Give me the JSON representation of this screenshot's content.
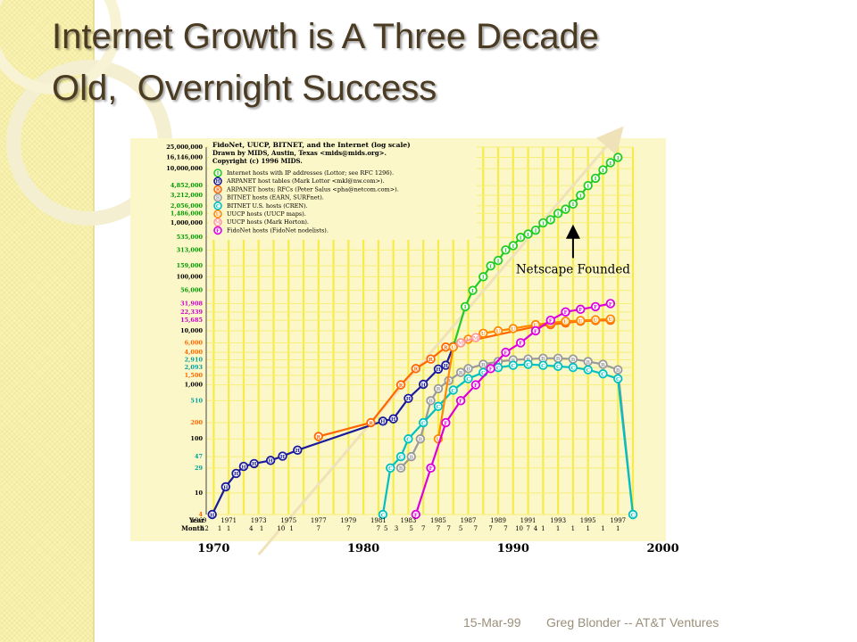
{
  "slide": {
    "title_lines": [
      "Internet Growth is A Three Decade",
      "Old,  Overnight Success"
    ],
    "footer_date": "15-Mar-99",
    "footer_credit": "Greg Blonder -- AT&T Ventures"
  },
  "colors": {
    "accent": "#4a3b22",
    "strip": "#faf3b0",
    "chart_bg": "#fbf7c8",
    "grid_yellow": "#f5ec4a"
  },
  "chart_data": {
    "type": "line",
    "title": "FidoNet, UUCP, BITNET, and the Internet (log scale)",
    "subtitle_lines": [
      "Drawn by MIDS, Austin, Texas <mids@mids.org>.",
      "Copyright (c) 1996 MIDS."
    ],
    "y_scale": "log",
    "ylim": [
      4,
      25000000
    ],
    "xlim": [
      1969.5,
      1998
    ],
    "ytick_labels": [
      {
        "v": 25000000,
        "t": "25,000,000",
        "c": "#000000"
      },
      {
        "v": 16146000,
        "t": "16,146,000",
        "c": "#000000"
      },
      {
        "v": 10000000,
        "t": "10,000,000",
        "c": "#000000"
      },
      {
        "v": 4852000,
        "t": "4,852,000",
        "c": "#009a00"
      },
      {
        "v": 3212000,
        "t": "3,212,000",
        "c": "#009a00"
      },
      {
        "v": 2056000,
        "t": "2,056,000",
        "c": "#009a00"
      },
      {
        "v": 1486000,
        "t": "1,486,000",
        "c": "#009a00"
      },
      {
        "v": 1000000,
        "t": "1,000,000",
        "c": "#000000"
      },
      {
        "v": 535000,
        "t": "535,000",
        "c": "#009a00"
      },
      {
        "v": 313000,
        "t": "313,000",
        "c": "#009a00"
      },
      {
        "v": 159000,
        "t": "159,000",
        "c": "#009a00"
      },
      {
        "v": 100000,
        "t": "100,000",
        "c": "#000000"
      },
      {
        "v": 56000,
        "t": "56,000",
        "c": "#009a00"
      },
      {
        "v": 31908,
        "t": "31,908",
        "c": "#cc00cc"
      },
      {
        "v": 22339,
        "t": "22,339",
        "c": "#cc00cc"
      },
      {
        "v": 15685,
        "t": "15,685",
        "c": "#cc00cc"
      },
      {
        "v": 10000,
        "t": "10,000",
        "c": "#000000"
      },
      {
        "v": 6000,
        "t": "6,000",
        "c": "#ff6600"
      },
      {
        "v": 4000,
        "t": "4,000",
        "c": "#ff6600"
      },
      {
        "v": 2910,
        "t": "2,910",
        "c": "#00a0a0"
      },
      {
        "v": 2093,
        "t": "2,093",
        "c": "#00a0a0"
      },
      {
        "v": 1500,
        "t": "1,500",
        "c": "#ff6600"
      },
      {
        "v": 1000,
        "t": "1,000",
        "c": "#000000"
      },
      {
        "v": 510,
        "t": "510",
        "c": "#00a0a0"
      },
      {
        "v": 200,
        "t": "200",
        "c": "#ff6600"
      },
      {
        "v": 100,
        "t": "100",
        "c": "#000000"
      },
      {
        "v": 47,
        "t": "47",
        "c": "#00a0a0"
      },
      {
        "v": 29,
        "t": "29",
        "c": "#00a0a0"
      },
      {
        "v": 10,
        "t": "10",
        "c": "#000000"
      },
      {
        "v": 4,
        "t": "4",
        "c": "#ff6600"
      }
    ],
    "year_row_label": "Year",
    "month_row_label": "Month",
    "year_tick_labels": [
      {
        "v": 1969,
        "t": "1969"
      },
      {
        "v": 1971,
        "t": "1971"
      },
      {
        "v": 1973,
        "t": "1973"
      },
      {
        "v": 1975,
        "t": "1975"
      },
      {
        "v": 1977,
        "t": "1977"
      },
      {
        "v": 1979,
        "t": "1979"
      },
      {
        "v": 1981,
        "t": "1981"
      },
      {
        "v": 1983,
        "t": "1983"
      },
      {
        "v": 1985,
        "t": "1985"
      },
      {
        "v": 1987,
        "t": "1987"
      },
      {
        "v": 1989,
        "t": "1989"
      },
      {
        "v": 1991,
        "t": "1991"
      },
      {
        "v": 1993,
        "t": "1993"
      },
      {
        "v": 1995,
        "t": "1995"
      },
      {
        "v": 1997,
        "t": "1997"
      }
    ],
    "month_tick_labels": [
      {
        "v": 1969.4,
        "t": "12"
      },
      {
        "v": 1970.4,
        "t": "1"
      },
      {
        "v": 1971.0,
        "t": "1"
      },
      {
        "v": 1972.5,
        "t": "4"
      },
      {
        "v": 1973.2,
        "t": "1"
      },
      {
        "v": 1974.5,
        "t": "10"
      },
      {
        "v": 1975.2,
        "t": "1"
      },
      {
        "v": 1977.0,
        "t": "7"
      },
      {
        "v": 1979.0,
        "t": "7"
      },
      {
        "v": 1981.0,
        "t": "7"
      },
      {
        "v": 1981.5,
        "t": "5"
      },
      {
        "v": 1982.2,
        "t": "3"
      },
      {
        "v": 1983.2,
        "t": "5"
      },
      {
        "v": 1984.0,
        "t": "7"
      },
      {
        "v": 1985.0,
        "t": "7"
      },
      {
        "v": 1985.7,
        "t": "7"
      },
      {
        "v": 1986.5,
        "t": "5"
      },
      {
        "v": 1987.5,
        "t": "7"
      },
      {
        "v": 1988.5,
        "t": "7"
      },
      {
        "v": 1989.5,
        "t": "7"
      },
      {
        "v": 1990.4,
        "t": "10"
      },
      {
        "v": 1991.0,
        "t": "7"
      },
      {
        "v": 1991.5,
        "t": "4"
      },
      {
        "v": 1992.0,
        "t": "1"
      },
      {
        "v": 1993.0,
        "t": "1"
      },
      {
        "v": 1994.0,
        "t": "1"
      },
      {
        "v": 1995.0,
        "t": "1"
      },
      {
        "v": 1996.0,
        "t": "1"
      },
      {
        "v": 1997.0,
        "t": "1"
      }
    ],
    "decade_labels": [
      {
        "v": 1970,
        "t": "1970"
      },
      {
        "v": 1980,
        "t": "1980"
      },
      {
        "v": 1990,
        "t": "1990"
      },
      {
        "v": 2000,
        "t": "2000"
      }
    ],
    "annotation": {
      "text": "Netscape Founded",
      "x": 1994.0,
      "y": 1000000,
      "y_text": 100000
    },
    "trend_arrow": {
      "start": {
        "x": 1973.0,
        "y": 4
      },
      "end": {
        "x": 1996.8,
        "y": 25000000
      }
    },
    "series": [
      {
        "key": "I",
        "color": "#22cc22",
        "name": "Internet hosts with IP addresses (Lottor; see RFC 1296).",
        "points": [
          [
            1986.0,
            5000
          ],
          [
            1986.8,
            28000
          ],
          [
            1987.3,
            56000
          ],
          [
            1988.0,
            100000
          ],
          [
            1988.5,
            159000
          ],
          [
            1989.0,
            200000
          ],
          [
            1989.5,
            313000
          ],
          [
            1990.0,
            376000
          ],
          [
            1990.5,
            535000
          ],
          [
            1991.0,
            617000
          ],
          [
            1991.5,
            727000
          ],
          [
            1992.0,
            992000
          ],
          [
            1992.5,
            1136000
          ],
          [
            1993.0,
            1486000
          ],
          [
            1993.5,
            1776000
          ],
          [
            1994.0,
            2217000
          ],
          [
            1994.5,
            3212000
          ],
          [
            1995.0,
            4852000
          ],
          [
            1995.5,
            6642000
          ],
          [
            1996.0,
            9472000
          ],
          [
            1996.5,
            12881000
          ],
          [
            1997.0,
            16146000
          ]
        ]
      },
      {
        "key": "H",
        "color": "#1a1a9a",
        "name": "ARPANET host tables (Mark Lottor <mkl@nw.com>).",
        "points": [
          [
            1969.9,
            4
          ],
          [
            1970.8,
            13
          ],
          [
            1971.5,
            23
          ],
          [
            1972.0,
            31
          ],
          [
            1972.7,
            35
          ],
          [
            1973.8,
            40
          ],
          [
            1974.6,
            48
          ],
          [
            1975.6,
            62
          ],
          [
            1981.3,
            213
          ],
          [
            1982.0,
            235
          ],
          [
            1983.0,
            562
          ],
          [
            1984.0,
            1024
          ],
          [
            1985.0,
            1961
          ],
          [
            1985.5,
            2308
          ],
          [
            1986.0,
            5089
          ]
        ]
      },
      {
        "key": "R",
        "color": "#ff6600",
        "name": "ARPANET hosts; RFCs (Peter Salus <pha@netcom.com>).",
        "points": [
          [
            1977.0,
            111
          ],
          [
            1980.5,
            200
          ],
          [
            1982.5,
            1000
          ],
          [
            1983.5,
            2000
          ],
          [
            1984.5,
            3000
          ],
          [
            1985.5,
            5000
          ],
          [
            1986.5,
            6000
          ],
          [
            1991.5,
            12000
          ],
          [
            1992.5,
            13000
          ],
          [
            1993.5,
            14000
          ],
          [
            1994.5,
            15000
          ],
          [
            1995.5,
            15500
          ],
          [
            1996.5,
            15685
          ]
        ]
      },
      {
        "key": "B",
        "color": "#999999",
        "name": "BITNET hosts (EARN, SURFnet).",
        "points": [
          [
            1982.5,
            29
          ],
          [
            1983.2,
            47
          ],
          [
            1983.8,
            100
          ],
          [
            1984.5,
            510
          ],
          [
            1985.0,
            850
          ],
          [
            1985.7,
            1200
          ],
          [
            1986.5,
            1700
          ],
          [
            1987.0,
            2000
          ],
          [
            1988.0,
            2400
          ],
          [
            1989.0,
            2700
          ],
          [
            1990.0,
            2900
          ],
          [
            1991.0,
            3000
          ],
          [
            1992.0,
            3100
          ],
          [
            1993.0,
            3100
          ],
          [
            1994.0,
            3000
          ],
          [
            1995.0,
            2700
          ],
          [
            1996.0,
            2400
          ],
          [
            1997.0,
            1900
          ],
          [
            1998.0,
            4
          ]
        ]
      },
      {
        "key": "C",
        "color": "#00c0c0",
        "name": "BITNET U.S. hosts (CREN).",
        "points": [
          [
            1981.3,
            4
          ],
          [
            1981.8,
            29
          ],
          [
            1982.5,
            47
          ],
          [
            1983.0,
            100
          ],
          [
            1984.0,
            200
          ],
          [
            1985.0,
            400
          ],
          [
            1986.0,
            800
          ],
          [
            1987.0,
            1300
          ],
          [
            1988.0,
            1700
          ],
          [
            1989.0,
            2093
          ],
          [
            1990.0,
            2300
          ],
          [
            1991.0,
            2400
          ],
          [
            1992.0,
            2300
          ],
          [
            1993.0,
            2200
          ],
          [
            1994.0,
            2100
          ],
          [
            1995.0,
            1900
          ],
          [
            1996.0,
            1600
          ],
          [
            1997.0,
            1300
          ],
          [
            1998.0,
            4
          ]
        ]
      },
      {
        "key": "U",
        "color": "#ff8800",
        "name": "UUCP hosts (UUCP maps).",
        "points": [
          [
            1985.0,
            100
          ],
          [
            1986.0,
            5000
          ],
          [
            1987.0,
            7000
          ],
          [
            1988.0,
            9000
          ],
          [
            1989.0,
            10000
          ],
          [
            1990.0,
            11000
          ],
          [
            1991.5,
            13000
          ],
          [
            1992.5,
            14000
          ],
          [
            1993.5,
            15000
          ],
          [
            1994.5,
            15500
          ],
          [
            1995.5,
            16000
          ],
          [
            1996.5,
            16500
          ]
        ]
      },
      {
        "key": "M",
        "color": "#ff9999",
        "name": "UUCP hosts (Mark Horton).",
        "points": [
          [
            1986.5,
            6000
          ],
          [
            1987.5,
            7500
          ]
        ]
      },
      {
        "key": "F",
        "color": "#dd00dd",
        "name": "FidoNet hosts (FidoNet nodelists).",
        "points": [
          [
            1983.5,
            4
          ],
          [
            1984.5,
            29
          ],
          [
            1985.5,
            200
          ],
          [
            1986.5,
            510
          ],
          [
            1987.5,
            1000
          ],
          [
            1988.5,
            2000
          ],
          [
            1989.5,
            4000
          ],
          [
            1990.5,
            6000
          ],
          [
            1991.5,
            10000
          ],
          [
            1992.5,
            15685
          ],
          [
            1993.5,
            22339
          ],
          [
            1994.5,
            25000
          ],
          [
            1995.5,
            28000
          ],
          [
            1996.5,
            31908
          ]
        ]
      }
    ]
  }
}
